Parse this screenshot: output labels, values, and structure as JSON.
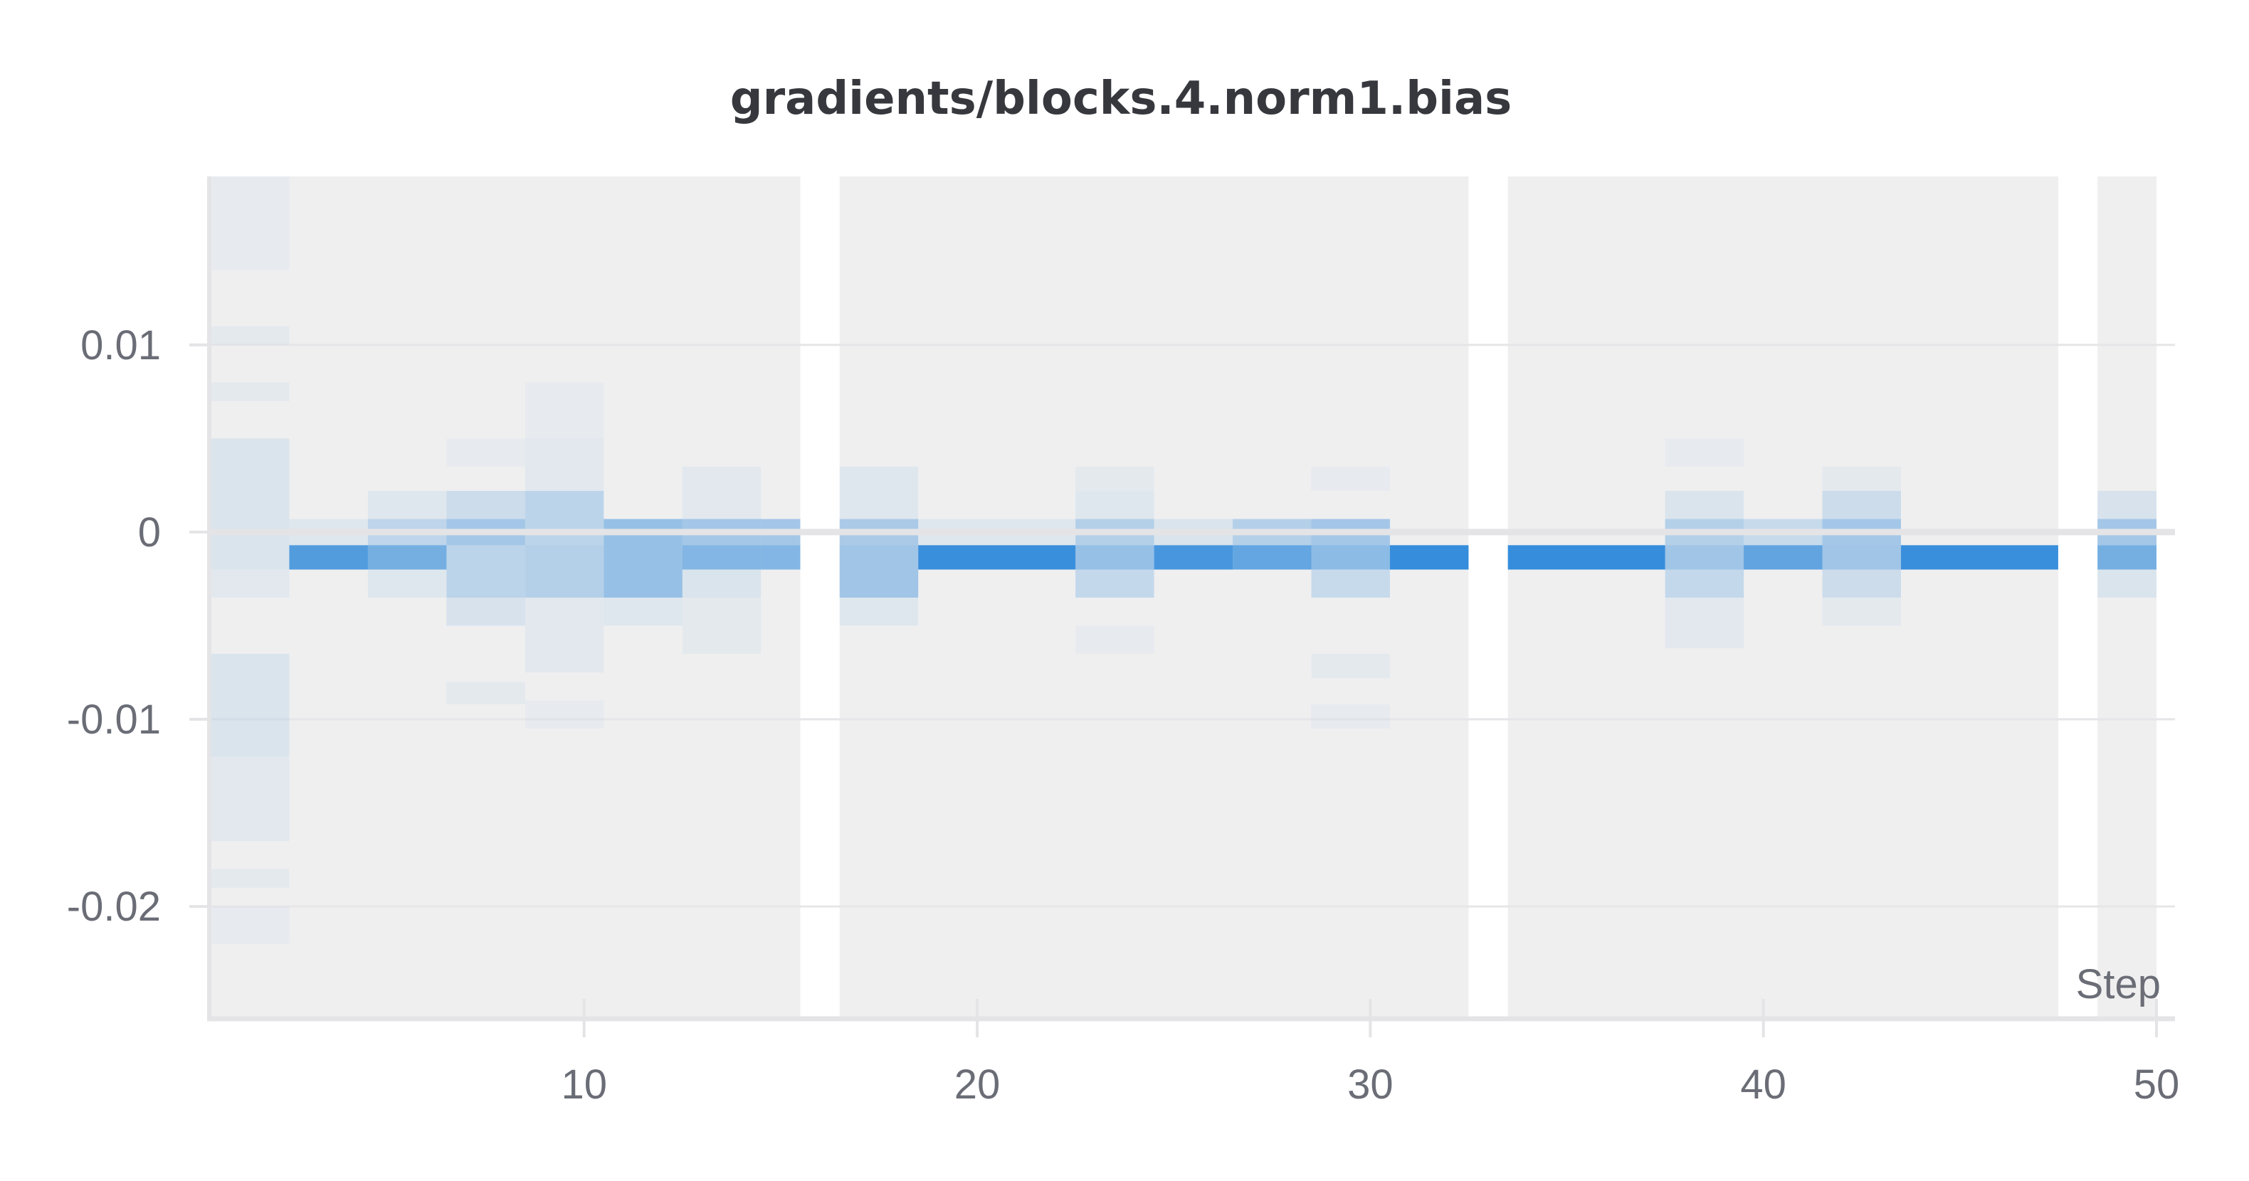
{
  "chart_data": {
    "type": "heatmap",
    "title": "gradients/blocks.4.norm1.bias",
    "xlabel": "Step",
    "ylabel": "",
    "xlim": [
      0.5,
      50
    ],
    "ylim": [
      -0.026,
      0.019
    ],
    "x_ticks": [
      {
        "value": 10,
        "label": "10"
      },
      {
        "value": 20,
        "label": "20"
      },
      {
        "value": 30,
        "label": "30"
      },
      {
        "value": 40,
        "label": "40"
      },
      {
        "value": 50,
        "label": "50"
      }
    ],
    "y_ticks": [
      {
        "value": 0.01,
        "label": "0.01"
      },
      {
        "value": 0,
        "label": "0"
      },
      {
        "value": -0.01,
        "label": "-0.01"
      },
      {
        "value": -0.02,
        "label": "-0.02"
      }
    ],
    "grid": true,
    "colors": {
      "background": "#efeff0",
      "cell": "#2a87da",
      "title": "#36383d",
      "tick": "#6a6d76",
      "axis": "#e4e4e6",
      "gridline": "#e6e6e8"
    },
    "data_segments": [
      [
        0.5,
        15.5
      ],
      [
        16.5,
        32.5
      ],
      [
        33.5,
        47.5
      ],
      [
        48.5,
        50.5
      ]
    ],
    "cells": [
      {
        "x": [
          0.5,
          2.5
        ],
        "y": [
          0.014,
          0.019
        ],
        "intensity": 0.04
      },
      {
        "x": [
          0.5,
          2.5
        ],
        "y": [
          0.01,
          0.011
        ],
        "intensity": 0.05
      },
      {
        "x": [
          0.5,
          2.5
        ],
        "y": [
          0.007,
          0.008
        ],
        "intensity": 0.05
      },
      {
        "x": [
          0.5,
          2.5
        ],
        "y": [
          0.005,
          0.0
        ],
        "intensity": 0.1
      },
      {
        "x": [
          0.5,
          2.5
        ],
        "y": [
          0.0,
          -0.002
        ],
        "intensity": 0.1
      },
      {
        "x": [
          0.5,
          2.5
        ],
        "y": [
          -0.002,
          -0.0035
        ],
        "intensity": 0.06
      },
      {
        "x": [
          0.5,
          2.5
        ],
        "y": [
          -0.0065,
          -0.012
        ],
        "intensity": 0.1
      },
      {
        "x": [
          0.5,
          2.5
        ],
        "y": [
          -0.012,
          -0.0165
        ],
        "intensity": 0.06
      },
      {
        "x": [
          0.5,
          2.5
        ],
        "y": [
          -0.018,
          -0.019
        ],
        "intensity": 0.05
      },
      {
        "x": [
          0.5,
          2.5
        ],
        "y": [
          -0.02,
          -0.022
        ],
        "intensity": 0.04
      },
      {
        "x": [
          2.5,
          4.5
        ],
        "y": [
          0.0007,
          -0.0007
        ],
        "intensity": 0.08
      },
      {
        "x": [
          2.5,
          4.5
        ],
        "y": [
          -0.0007,
          -0.002
        ],
        "intensity": 0.8
      },
      {
        "x": [
          4.5,
          6.5
        ],
        "y": [
          0.0022,
          0.0007
        ],
        "intensity": 0.08
      },
      {
        "x": [
          4.5,
          6.5
        ],
        "y": [
          0.0007,
          -0.0007
        ],
        "intensity": 0.25
      },
      {
        "x": [
          4.5,
          6.5
        ],
        "y": [
          -0.0007,
          -0.002
        ],
        "intensity": 0.62
      },
      {
        "x": [
          4.5,
          6.5
        ],
        "y": [
          -0.002,
          -0.0035
        ],
        "intensity": 0.08
      },
      {
        "x": [
          6.5,
          8.5
        ],
        "y": [
          0.005,
          0.0035
        ],
        "intensity": 0.04
      },
      {
        "x": [
          6.5,
          8.5
        ],
        "y": [
          0.0022,
          0.0007
        ],
        "intensity": 0.18
      },
      {
        "x": [
          6.5,
          8.5
        ],
        "y": [
          0.0007,
          -0.0007
        ],
        "intensity": 0.38
      },
      {
        "x": [
          6.5,
          8.5
        ],
        "y": [
          -0.0007,
          -0.0035
        ],
        "intensity": 0.26
      },
      {
        "x": [
          6.5,
          8.5
        ],
        "y": [
          -0.0035,
          -0.005
        ],
        "intensity": 0.12
      },
      {
        "x": [
          6.5,
          8.5
        ],
        "y": [
          -0.008,
          -0.0092
        ],
        "intensity": 0.05
      },
      {
        "x": [
          8.5,
          10.5
        ],
        "y": [
          0.008,
          0.005
        ],
        "intensity": 0.04
      },
      {
        "x": [
          8.5,
          10.5
        ],
        "y": [
          0.005,
          0.0022
        ],
        "intensity": 0.06
      },
      {
        "x": [
          8.5,
          10.5
        ],
        "y": [
          0.0022,
          -0.0007
        ],
        "intensity": 0.26
      },
      {
        "x": [
          8.5,
          10.5
        ],
        "y": [
          -0.0007,
          -0.0035
        ],
        "intensity": 0.3
      },
      {
        "x": [
          8.5,
          10.5
        ],
        "y": [
          -0.0035,
          -0.0075
        ],
        "intensity": 0.06
      },
      {
        "x": [
          8.5,
          10.5
        ],
        "y": [
          -0.009,
          -0.0105
        ],
        "intensity": 0.04
      },
      {
        "x": [
          10.5,
          12.5
        ],
        "y": [
          0.0007,
          -0.0007
        ],
        "intensity": 0.45
      },
      {
        "x": [
          10.5,
          12.5
        ],
        "y": [
          -0.0007,
          -0.0035
        ],
        "intensity": 0.45
      },
      {
        "x": [
          10.5,
          12.5
        ],
        "y": [
          -0.0035,
          -0.005
        ],
        "intensity": 0.08
      },
      {
        "x": [
          12.5,
          14.5
        ],
        "y": [
          0.0035,
          0.0007
        ],
        "intensity": 0.06
      },
      {
        "x": [
          12.5,
          14.5
        ],
        "y": [
          0.0007,
          -0.0007
        ],
        "intensity": 0.38
      },
      {
        "x": [
          12.5,
          14.5
        ],
        "y": [
          -0.0007,
          -0.002
        ],
        "intensity": 0.55
      },
      {
        "x": [
          12.5,
          14.5
        ],
        "y": [
          -0.002,
          -0.0035
        ],
        "intensity": 0.1
      },
      {
        "x": [
          12.5,
          14.5
        ],
        "y": [
          -0.0035,
          -0.0065
        ],
        "intensity": 0.05
      },
      {
        "x": [
          14.5,
          15.5
        ],
        "y": [
          0.0007,
          -0.0007
        ],
        "intensity": 0.38
      },
      {
        "x": [
          14.5,
          15.5
        ],
        "y": [
          -0.0007,
          -0.002
        ],
        "intensity": 0.55
      },
      {
        "x": [
          16.5,
          18.5
        ],
        "y": [
          0.0035,
          0.0007
        ],
        "intensity": 0.08
      },
      {
        "x": [
          16.5,
          18.5
        ],
        "y": [
          0.0007,
          -0.0007
        ],
        "intensity": 0.35
      },
      {
        "x": [
          16.5,
          18.5
        ],
        "y": [
          -0.0007,
          -0.0035
        ],
        "intensity": 0.4
      },
      {
        "x": [
          16.5,
          18.5
        ],
        "y": [
          -0.0035,
          -0.005
        ],
        "intensity": 0.08
      },
      {
        "x": [
          18.5,
          22.5
        ],
        "y": [
          0.0007,
          -0.0007
        ],
        "intensity": 0.08
      },
      {
        "x": [
          18.5,
          22.5
        ],
        "y": [
          -0.0007,
          -0.002
        ],
        "intensity": 0.92
      },
      {
        "x": [
          22.5,
          24.5
        ],
        "y": [
          0.0035,
          0.0022
        ],
        "intensity": 0.05
      },
      {
        "x": [
          22.5,
          24.5
        ],
        "y": [
          0.0022,
          0.0007
        ],
        "intensity": 0.08
      },
      {
        "x": [
          22.5,
          24.5
        ],
        "y": [
          0.0007,
          -0.0007
        ],
        "intensity": 0.3
      },
      {
        "x": [
          22.5,
          24.5
        ],
        "y": [
          -0.0007,
          -0.002
        ],
        "intensity": 0.45
      },
      {
        "x": [
          22.5,
          24.5
        ],
        "y": [
          -0.002,
          -0.0035
        ],
        "intensity": 0.22
      },
      {
        "x": [
          22.5,
          24.5
        ],
        "y": [
          -0.005,
          -0.0065
        ],
        "intensity": 0.04
      },
      {
        "x": [
          24.5,
          26.5
        ],
        "y": [
          0.0007,
          -0.0007
        ],
        "intensity": 0.1
      },
      {
        "x": [
          24.5,
          26.5
        ],
        "y": [
          -0.0007,
          -0.002
        ],
        "intensity": 0.85
      },
      {
        "x": [
          26.5,
          28.5
        ],
        "y": [
          0.0007,
          -0.0007
        ],
        "intensity": 0.3
      },
      {
        "x": [
          26.5,
          28.5
        ],
        "y": [
          -0.0007,
          -0.002
        ],
        "intensity": 0.7
      },
      {
        "x": [
          28.5,
          30.5
        ],
        "y": [
          0.0035,
          0.0022
        ],
        "intensity": 0.04
      },
      {
        "x": [
          28.5,
          30.5
        ],
        "y": [
          0.0007,
          -0.0007
        ],
        "intensity": 0.38
      },
      {
        "x": [
          28.5,
          30.5
        ],
        "y": [
          -0.0007,
          -0.002
        ],
        "intensity": 0.5
      },
      {
        "x": [
          28.5,
          30.5
        ],
        "y": [
          -0.002,
          -0.0035
        ],
        "intensity": 0.2
      },
      {
        "x": [
          28.5,
          30.5
        ],
        "y": [
          -0.0065,
          -0.0078
        ],
        "intensity": 0.05
      },
      {
        "x": [
          28.5,
          30.5
        ],
        "y": [
          -0.0092,
          -0.0105
        ],
        "intensity": 0.04
      },
      {
        "x": [
          30.5,
          32.5
        ],
        "y": [
          -0.0007,
          -0.002
        ],
        "intensity": 0.95
      },
      {
        "x": [
          33.5,
          37.5
        ],
        "y": [
          -0.0007,
          -0.002
        ],
        "intensity": 0.95
      },
      {
        "x": [
          37.5,
          39.5
        ],
        "y": [
          0.005,
          0.0035
        ],
        "intensity": 0.04
      },
      {
        "x": [
          37.5,
          39.5
        ],
        "y": [
          0.0022,
          0.0007
        ],
        "intensity": 0.1
      },
      {
        "x": [
          37.5,
          39.5
        ],
        "y": [
          0.0007,
          -0.0007
        ],
        "intensity": 0.3
      },
      {
        "x": [
          37.5,
          39.5
        ],
        "y": [
          -0.0007,
          -0.002
        ],
        "intensity": 0.4
      },
      {
        "x": [
          37.5,
          39.5
        ],
        "y": [
          -0.002,
          -0.0035
        ],
        "intensity": 0.22
      },
      {
        "x": [
          37.5,
          39.5
        ],
        "y": [
          -0.0035,
          -0.0062
        ],
        "intensity": 0.06
      },
      {
        "x": [
          39.5,
          41.5
        ],
        "y": [
          0.0007,
          -0.0007
        ],
        "intensity": 0.2
      },
      {
        "x": [
          39.5,
          41.5
        ],
        "y": [
          -0.0007,
          -0.002
        ],
        "intensity": 0.72
      },
      {
        "x": [
          41.5,
          43.5
        ],
        "y": [
          0.0035,
          0.0022
        ],
        "intensity": 0.05
      },
      {
        "x": [
          41.5,
          43.5
        ],
        "y": [
          0.0022,
          0.0007
        ],
        "intensity": 0.18
      },
      {
        "x": [
          41.5,
          43.5
        ],
        "y": [
          0.0007,
          -0.0007
        ],
        "intensity": 0.38
      },
      {
        "x": [
          41.5,
          43.5
        ],
        "y": [
          -0.0007,
          -0.002
        ],
        "intensity": 0.4
      },
      {
        "x": [
          41.5,
          43.5
        ],
        "y": [
          -0.002,
          -0.0035
        ],
        "intensity": 0.18
      },
      {
        "x": [
          41.5,
          43.5
        ],
        "y": [
          -0.0035,
          -0.005
        ],
        "intensity": 0.05
      },
      {
        "x": [
          43.5,
          47.5
        ],
        "y": [
          -0.0007,
          -0.002
        ],
        "intensity": 0.92
      },
      {
        "x": [
          48.5,
          50.5
        ],
        "y": [
          0.0022,
          0.0007
        ],
        "intensity": 0.12
      },
      {
        "x": [
          48.5,
          50.5
        ],
        "y": [
          0.0007,
          -0.0007
        ],
        "intensity": 0.38
      },
      {
        "x": [
          48.5,
          50.5
        ],
        "y": [
          -0.0007,
          -0.002
        ],
        "intensity": 0.62
      },
      {
        "x": [
          48.5,
          50.5
        ],
        "y": [
          -0.002,
          -0.0035
        ],
        "intensity": 0.1
      }
    ]
  }
}
